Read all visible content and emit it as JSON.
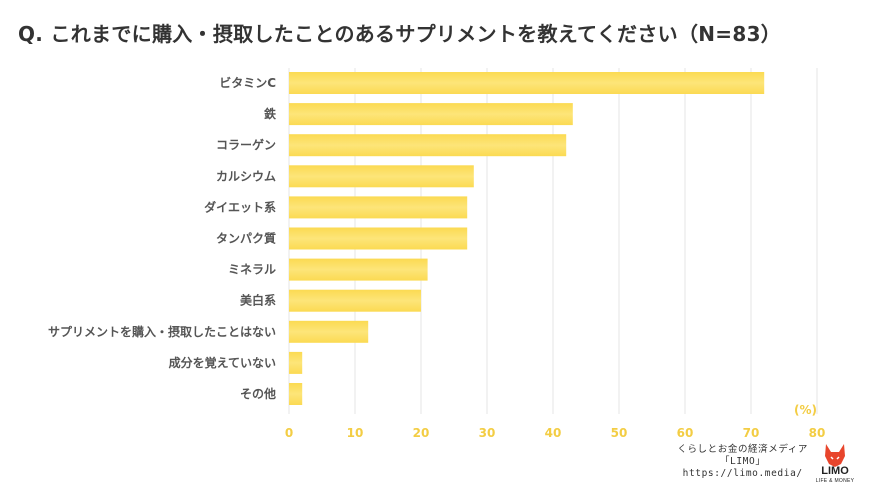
{
  "chart_data": {
    "type": "bar",
    "orientation": "horizontal",
    "title": "Q. これまでに購入・摂取したことのあるサプリメントを教えてください（N=83）",
    "categories": [
      "ビタミンC",
      "鉄",
      "コラーゲン",
      "カルシウム",
      "ダイエット系",
      "タンパク質",
      "ミネラル",
      "美白系",
      "サプリメントを購入・摂取したことはない",
      "成分を覚えていない",
      "その他"
    ],
    "values": [
      72,
      43,
      42,
      28,
      27,
      27,
      21,
      20,
      12,
      2,
      2
    ],
    "xlim": [
      0,
      80
    ],
    "xticks": [
      0,
      10,
      20,
      30,
      40,
      50,
      60,
      70,
      80
    ],
    "xlabel": "(%)",
    "grid": true,
    "colors": {
      "bar": "#fde579",
      "bar_top": "#fbda52",
      "grid": "#e6e6e6",
      "tick": "#f3cd44",
      "label": "#555555"
    }
  },
  "footer": {
    "line1": "くらしとお金の経済メディア",
    "line2": "「LIMO」",
    "line3": "https://limo.media/"
  },
  "logo": {
    "word": "LIMO",
    "sub": "LIFE & MONEY",
    "icon": "fox-icon",
    "color": "#e8452c"
  }
}
